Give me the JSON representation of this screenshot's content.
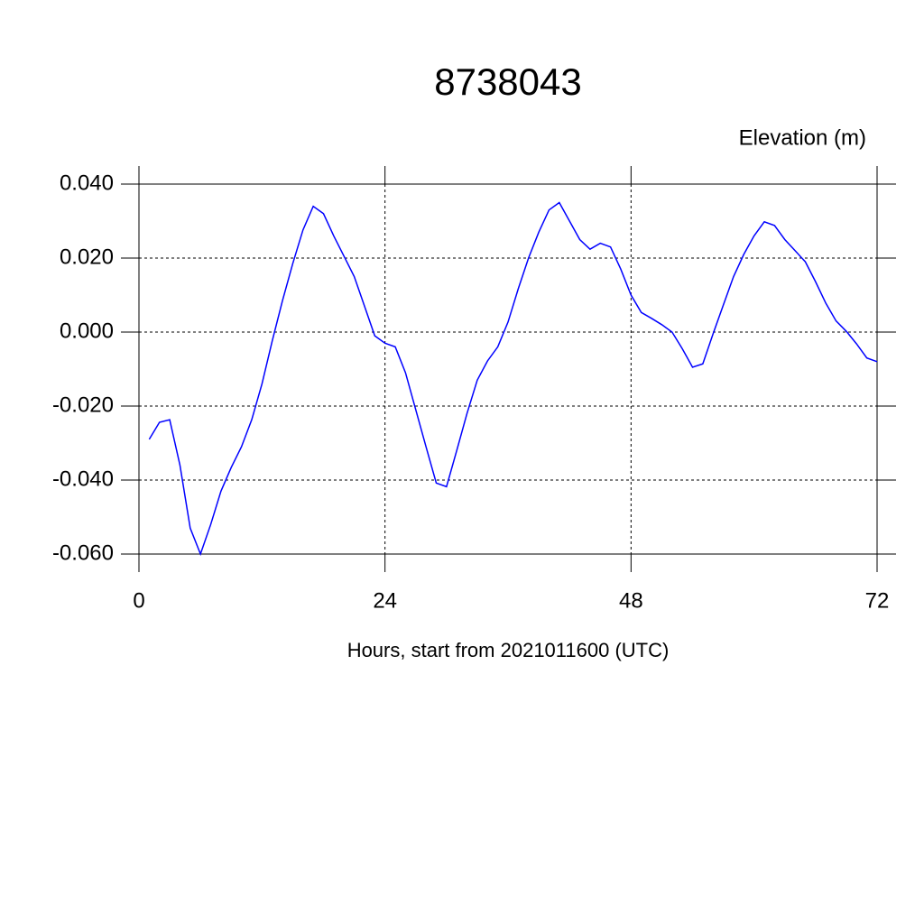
{
  "chart_data": {
    "type": "line",
    "title": "8738043",
    "ylabel": "Elevation (m)",
    "xlabel": "Hours, start from 2021011600 (UTC)",
    "x": [
      1,
      2,
      3,
      4,
      5,
      6,
      7,
      8,
      9,
      10,
      11,
      12,
      13,
      14,
      15,
      16,
      17,
      18,
      19,
      20,
      21,
      22,
      23,
      24,
      25,
      26,
      27,
      28,
      29,
      30,
      31,
      32,
      33,
      34,
      35,
      36,
      37,
      38,
      39,
      40,
      41,
      42,
      43,
      44,
      45,
      46,
      47,
      48,
      49,
      50,
      51,
      52,
      53,
      54,
      55,
      56,
      57,
      58,
      59,
      60,
      61,
      62,
      63,
      64,
      65,
      66,
      67,
      68,
      69,
      70,
      71,
      72
    ],
    "series": [
      {
        "color": "#0000ff",
        "values": [
          -0.029,
          -0.0244,
          -0.0237,
          -0.036,
          -0.053,
          -0.06,
          -0.052,
          -0.043,
          -0.0366,
          -0.031,
          -0.0237,
          -0.014,
          -0.0024,
          0.0085,
          0.0185,
          0.0276,
          0.034,
          0.032,
          0.026,
          0.0205,
          0.015,
          0.007,
          -0.001,
          -0.003,
          -0.004,
          -0.011,
          -0.021,
          -0.031,
          -0.0408,
          -0.0418,
          -0.032,
          -0.022,
          -0.013,
          -0.0078,
          -0.004,
          0.0027,
          0.0117,
          0.02,
          0.027,
          0.033,
          0.035,
          0.03,
          0.025,
          0.0224,
          0.024,
          0.023,
          0.017,
          0.01,
          0.0053,
          0.0037,
          0.002,
          0.0,
          -0.0045,
          -0.0095,
          -0.0086,
          -0.0005,
          0.0073,
          0.015,
          0.021,
          0.026,
          0.0298,
          0.0288,
          0.025,
          0.022,
          0.019,
          0.0136,
          0.0078,
          0.003,
          0.0002,
          -0.0032,
          -0.007,
          -0.008
        ]
      }
    ],
    "xlim": [
      0,
      72
    ],
    "xticks": [
      0,
      24,
      48,
      72
    ],
    "ylim": [
      -0.06,
      0.04
    ],
    "yticks": [
      {
        "value": -0.06,
        "label": "-0.060"
      },
      {
        "value": -0.04,
        "label": "-0.040"
      },
      {
        "value": -0.02,
        "label": "-0.020"
      },
      {
        "value": 0,
        "label": "0.000"
      },
      {
        "value": 0.02,
        "label": "0.020"
      },
      {
        "value": 0.04,
        "label": "0.040"
      }
    ],
    "grid": true
  }
}
